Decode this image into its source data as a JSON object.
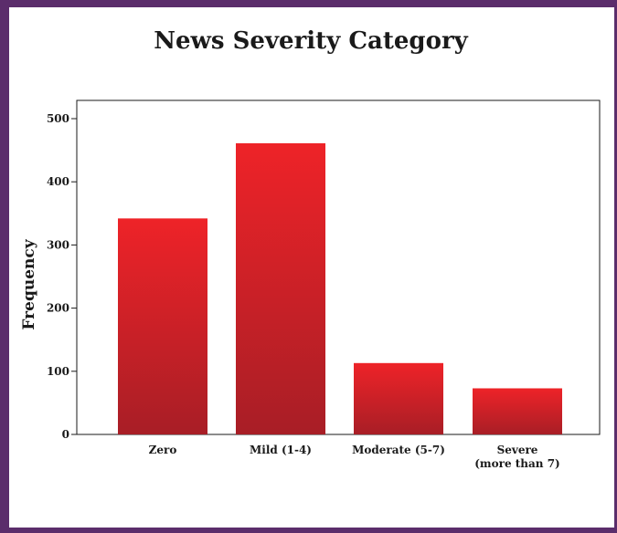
{
  "chart_data": {
    "type": "bar",
    "title": "News Severity Category",
    "xlabel": "",
    "ylabel": "Frequency",
    "categories": [
      [
        "Zero"
      ],
      [
        "Mild (1-4)"
      ],
      [
        "Moderate (5-7)"
      ],
      [
        "Severe",
        "(more than 7)"
      ]
    ],
    "values": [
      342,
      461,
      113,
      73
    ],
    "ylim": [
      0,
      520
    ],
    "yticks": [
      0,
      100,
      200,
      300,
      400,
      500
    ],
    "grid": false,
    "bar_color_top": "#ee2328",
    "bar_color_bottom": "#a81e26"
  },
  "frame_color": "#5b2d6b"
}
